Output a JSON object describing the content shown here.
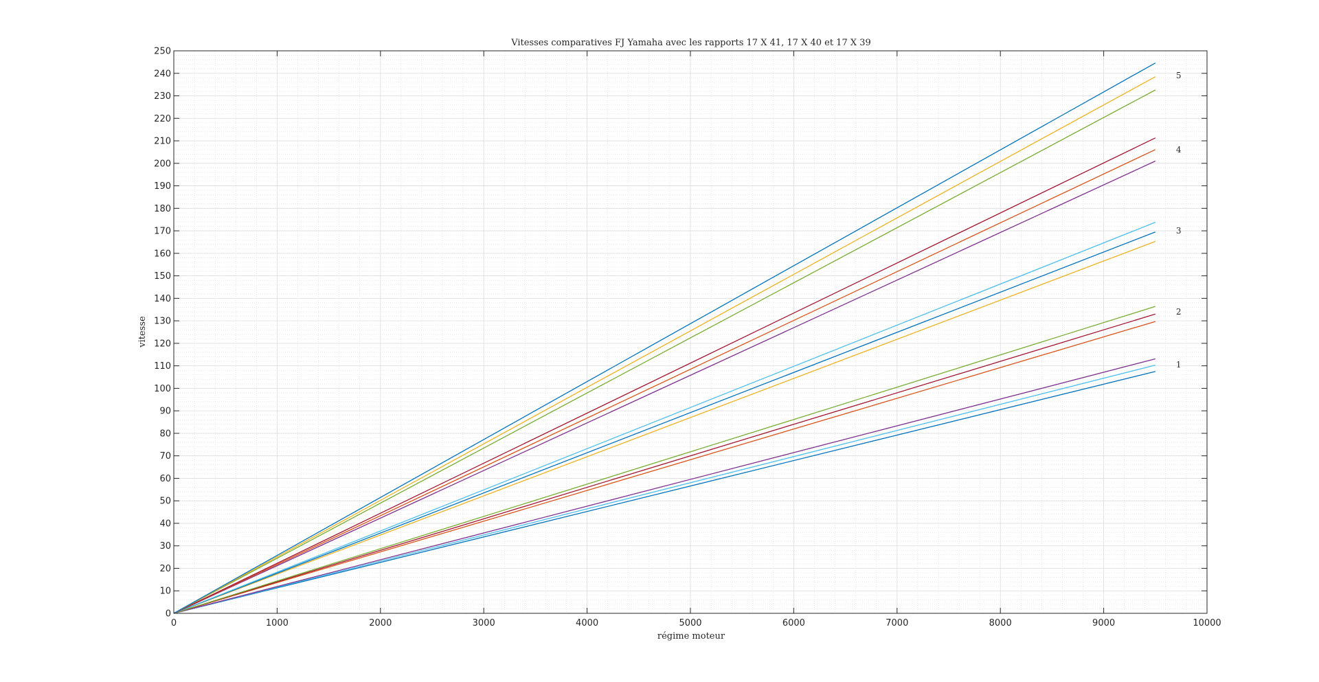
{
  "chart_data": {
    "type": "line",
    "title": "Vitesses comparatives FJ Yamaha avec les rapports 17 X 41, 17 X 40 et 17 X 39",
    "xlabel": "régime moteur",
    "ylabel": "vitesse",
    "xlim": [
      0,
      10000
    ],
    "ylim": [
      0,
      250
    ],
    "x_ticks": [
      0,
      1000,
      2000,
      3000,
      4000,
      5000,
      6000,
      7000,
      8000,
      9000,
      10000
    ],
    "y_ticks": [
      0,
      10,
      20,
      30,
      40,
      50,
      60,
      70,
      80,
      90,
      100,
      110,
      120,
      130,
      140,
      150,
      160,
      170,
      180,
      190,
      200,
      210,
      220,
      230,
      240,
      250
    ],
    "grid": true,
    "minor_grid": true,
    "series": [
      {
        "color": "#0072BD",
        "x": [
          0,
          9500
        ],
        "y": [
          0,
          107.5
        ]
      },
      {
        "color": "#4DBEEE",
        "x": [
          0,
          9500
        ],
        "y": [
          0,
          110.3
        ]
      },
      {
        "color": "#7E2F8E",
        "x": [
          0,
          9500
        ],
        "y": [
          0,
          113.1
        ]
      },
      {
        "color": "#D95319",
        "x": [
          0,
          9500
        ],
        "y": [
          0,
          129.7
        ]
      },
      {
        "color": "#A2142F",
        "x": [
          0,
          9500
        ],
        "y": [
          0,
          133.0
        ]
      },
      {
        "color": "#77AC30",
        "x": [
          0,
          9500
        ],
        "y": [
          0,
          136.4
        ]
      },
      {
        "color": "#EDB120",
        "x": [
          0,
          9500
        ],
        "y": [
          0,
          165.3
        ]
      },
      {
        "color": "#0072BD",
        "x": [
          0,
          9500
        ],
        "y": [
          0,
          169.5
        ]
      },
      {
        "color": "#4DBEEE",
        "x": [
          0,
          9500
        ],
        "y": [
          0,
          173.8
        ]
      },
      {
        "color": "#7E2F8E",
        "x": [
          0,
          9500
        ],
        "y": [
          0,
          201.0
        ]
      },
      {
        "color": "#D95319",
        "x": [
          0,
          9500
        ],
        "y": [
          0,
          206.1
        ]
      },
      {
        "color": "#A2142F",
        "x": [
          0,
          9500
        ],
        "y": [
          0,
          211.3
        ]
      },
      {
        "color": "#77AC30",
        "x": [
          0,
          9500
        ],
        "y": [
          0,
          232.6
        ]
      },
      {
        "color": "#EDB120",
        "x": [
          0,
          9500
        ],
        "y": [
          0,
          238.5
        ]
      },
      {
        "color": "#0072BD",
        "x": [
          0,
          9500
        ],
        "y": [
          0,
          244.6
        ]
      }
    ],
    "annotations": [
      {
        "text": "1",
        "x": 9700,
        "y": 110.5
      },
      {
        "text": "2",
        "x": 9700,
        "y": 134.0
      },
      {
        "text": "3",
        "x": 9700,
        "y": 170.0
      },
      {
        "text": "4",
        "x": 9700,
        "y": 206.0
      },
      {
        "text": "5",
        "x": 9700,
        "y": 239.0
      }
    ]
  }
}
